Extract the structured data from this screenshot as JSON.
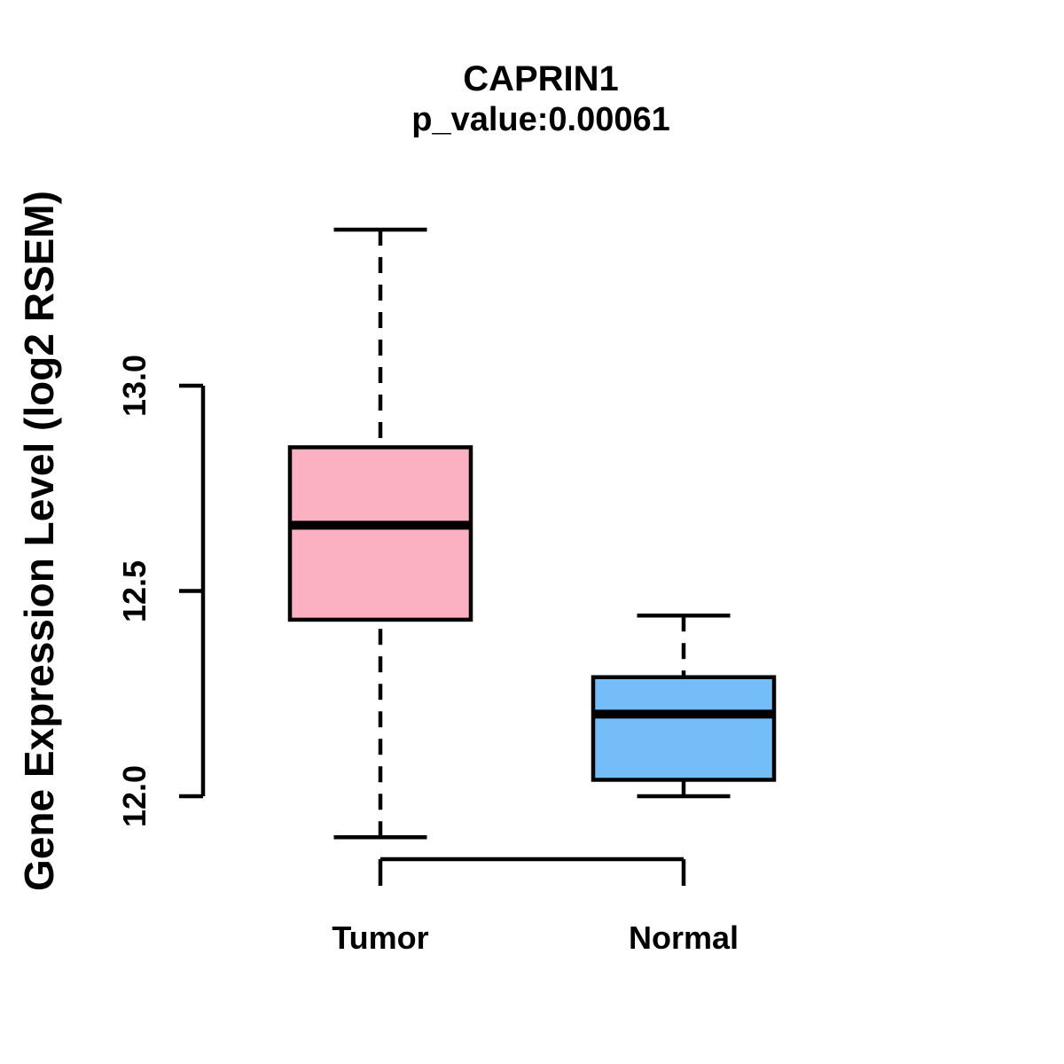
{
  "chart_data": {
    "type": "boxplot",
    "title": "CAPRIN1",
    "subtitle": "p_value:0.00061",
    "ylabel": "Gene Expression Level (log2 RSEM)",
    "xlabel": "",
    "categories": [
      "Tumor",
      "Normal"
    ],
    "yticks": [
      12.0,
      12.5,
      13.0
    ],
    "ytick_labels": [
      "12.0",
      "12.5",
      "13.0"
    ],
    "ylim": [
      11.75,
      13.45
    ],
    "grid": false,
    "legend": "none",
    "stroke": "#000000",
    "background": "#FFFFFF",
    "series": [
      {
        "name": "Tumor",
        "fill": "#FCB1C3",
        "lower_whisker": 11.9,
        "q1": 12.43,
        "median": 12.66,
        "q3": 12.85,
        "upper_whisker": 13.38
      },
      {
        "name": "Normal",
        "fill": "#74BDF8",
        "lower_whisker": 12.0,
        "q1": 12.04,
        "median": 12.2,
        "q3": 12.29,
        "upper_whisker": 12.44
      }
    ]
  }
}
